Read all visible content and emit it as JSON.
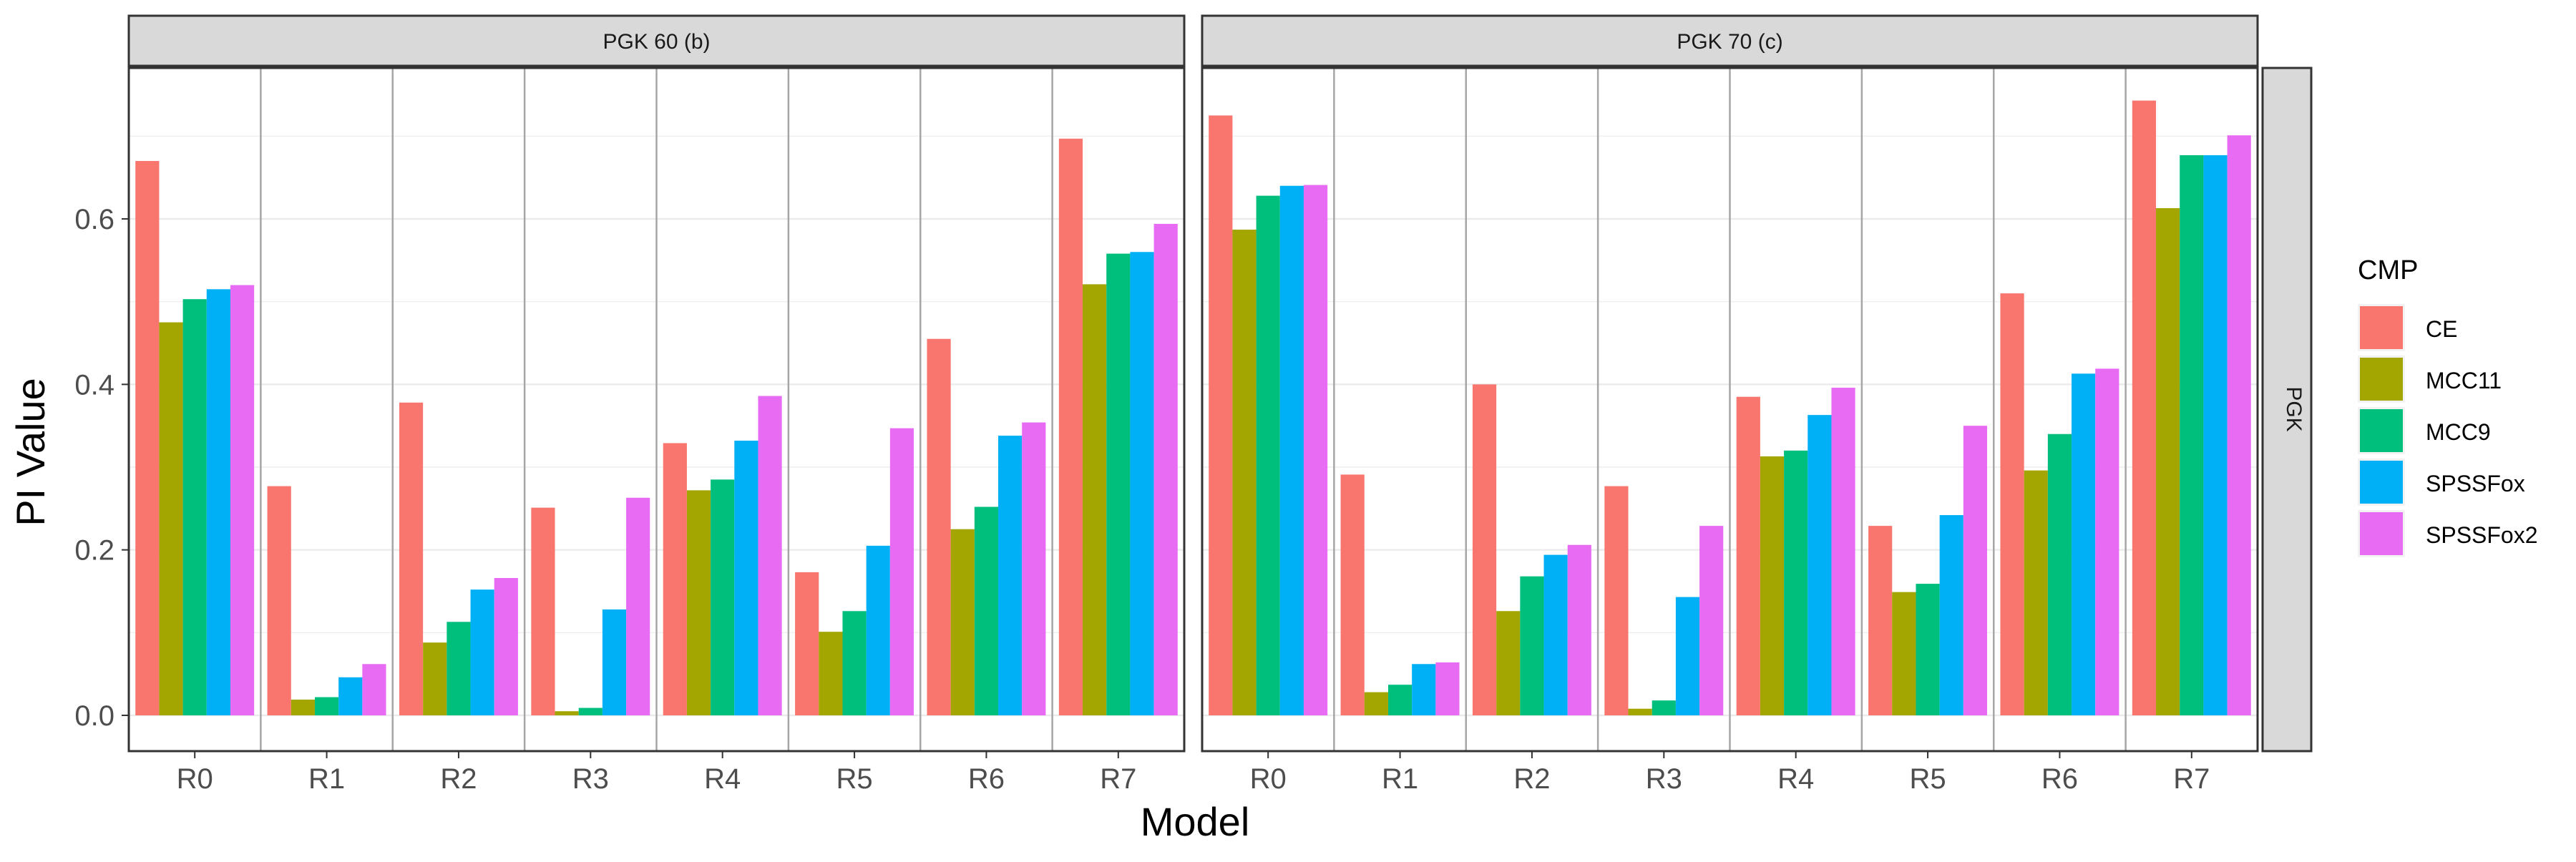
{
  "chart_data": {
    "type": "bar",
    "ylabel": "PI Value",
    "xlabel": "Model",
    "ylim": [
      0,
      0.75
    ],
    "yticks": [
      0.0,
      0.2,
      0.4,
      0.6
    ],
    "ytick_labels": [
      "0.0",
      "0.2",
      "0.4",
      "0.6"
    ],
    "categories": [
      "R0",
      "R1",
      "R2",
      "R3",
      "R4",
      "R5",
      "R6",
      "R7"
    ],
    "strip_right": "PGK",
    "legend_title": "CMP",
    "legend_position": "right",
    "series_colors": {
      "CE": "#F8766D",
      "MCC11": "#A3A500",
      "MCC9": "#00BF7D",
      "SPSSFox": "#00B0F6",
      "SPSSFox2": "#E76BF3"
    },
    "panels": [
      {
        "title": "PGK 60 (b)",
        "series": [
          {
            "name": "CE",
            "values": [
              0.67,
              0.277,
              0.378,
              0.251,
              0.329,
              0.173,
              0.455,
              0.697
            ]
          },
          {
            "name": "MCC11",
            "values": [
              0.475,
              0.019,
              0.088,
              0.005,
              0.272,
              0.101,
              0.225,
              0.521
            ]
          },
          {
            "name": "MCC9",
            "values": [
              0.503,
              0.022,
              0.113,
              0.009,
              0.285,
              0.126,
              0.252,
              0.558
            ]
          },
          {
            "name": "SPSSFox",
            "values": [
              0.515,
              0.046,
              0.152,
              0.128,
              0.332,
              0.205,
              0.338,
              0.56
            ]
          },
          {
            "name": "SPSSFox2",
            "values": [
              0.52,
              0.062,
              0.166,
              0.263,
              0.386,
              0.347,
              0.354,
              0.594
            ]
          }
        ]
      },
      {
        "title": "PGK 70 (c)",
        "series": [
          {
            "name": "CE",
            "values": [
              0.725,
              0.291,
              0.4,
              0.277,
              0.385,
              0.229,
              0.51,
              0.743
            ]
          },
          {
            "name": "MCC11",
            "values": [
              0.587,
              0.028,
              0.126,
              0.008,
              0.313,
              0.149,
              0.296,
              0.613
            ]
          },
          {
            "name": "MCC9",
            "values": [
              0.628,
              0.037,
              0.168,
              0.018,
              0.32,
              0.159,
              0.34,
              0.677
            ]
          },
          {
            "name": "SPSSFox",
            "values": [
              0.64,
              0.062,
              0.194,
              0.143,
              0.363,
              0.242,
              0.413,
              0.677
            ]
          },
          {
            "name": "SPSSFox2",
            "values": [
              0.641,
              0.064,
              0.206,
              0.229,
              0.396,
              0.35,
              0.419,
              0.701
            ]
          }
        ]
      }
    ]
  }
}
